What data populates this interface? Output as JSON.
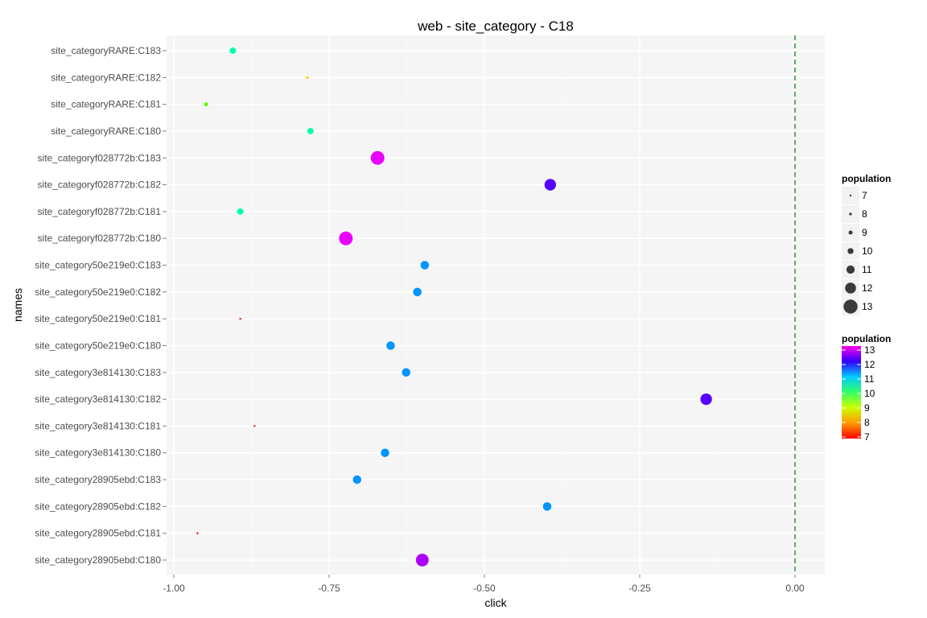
{
  "chart_data": {
    "type": "scatter",
    "title": "web - site_category - C18",
    "xlabel": "click",
    "ylabel": "names",
    "xlim": [
      -1.0,
      0.05
    ],
    "xticks": [
      -1.0,
      -0.75,
      -0.5,
      -0.25,
      0.0
    ],
    "xtick_labels": [
      "-1.00",
      "-0.75",
      "-0.50",
      "-0.25",
      "0.00"
    ],
    "reference_line": {
      "x": 0.0,
      "style": "dashed",
      "color": "#1a7a1a"
    },
    "grid": true,
    "background": "#f5f5f5",
    "categories": [
      "site_category28905ebd:C180",
      "site_category28905ebd:C181",
      "site_category28905ebd:C182",
      "site_category28905ebd:C183",
      "site_category3e814130:C180",
      "site_category3e814130:C181",
      "site_category3e814130:C182",
      "site_category3e814130:C183",
      "site_category50e219e0:C180",
      "site_category50e219e0:C181",
      "site_category50e219e0:C182",
      "site_category50e219e0:C183",
      "site_categoryf028772b:C180",
      "site_categoryf028772b:C181",
      "site_categoryf028772b:C182",
      "site_categoryf028772b:C183",
      "site_categoryRARE:C180",
      "site_categoryRARE:C181",
      "site_categoryRARE:C182",
      "site_categoryRARE:C183"
    ],
    "points": [
      {
        "name": "site_category28905ebd:C180",
        "click": -0.6,
        "population": 12.6
      },
      {
        "name": "site_category28905ebd:C181",
        "click": -0.962,
        "population": 7.0
      },
      {
        "name": "site_category28905ebd:C182",
        "click": -0.399,
        "population": 11.1
      },
      {
        "name": "site_category28905ebd:C183",
        "click": -0.705,
        "population": 11.1
      },
      {
        "name": "site_category3e814130:C180",
        "click": -0.66,
        "population": 11.1
      },
      {
        "name": "site_category3e814130:C181",
        "click": -0.87,
        "population": 7.0
      },
      {
        "name": "site_category3e814130:C182",
        "click": -0.143,
        "population": 12.2
      },
      {
        "name": "site_category3e814130:C183",
        "click": -0.626,
        "population": 11.1
      },
      {
        "name": "site_category50e219e0:C180",
        "click": -0.651,
        "population": 11.1
      },
      {
        "name": "site_category50e219e0:C181",
        "click": -0.893,
        "population": 7.0
      },
      {
        "name": "site_category50e219e0:C182",
        "click": -0.608,
        "population": 11.1
      },
      {
        "name": "site_category50e219e0:C183",
        "click": -0.596,
        "population": 11.1
      },
      {
        "name": "site_categoryf028772b:C180",
        "click": -0.723,
        "population": 12.9
      },
      {
        "name": "site_categoryf028772b:C181",
        "click": -0.893,
        "population": 10.2
      },
      {
        "name": "site_categoryf028772b:C182",
        "click": -0.394,
        "population": 12.2
      },
      {
        "name": "site_categoryf028772b:C183",
        "click": -0.672,
        "population": 12.9
      },
      {
        "name": "site_categoryRARE:C180",
        "click": -0.78,
        "population": 10.2
      },
      {
        "name": "site_categoryRARE:C181",
        "click": -0.948,
        "population": 9.0
      },
      {
        "name": "site_categoryRARE:C182",
        "click": -0.785,
        "population": 8.0
      },
      {
        "name": "site_categoryRARE:C183",
        "click": -0.905,
        "population": 10.2
      }
    ],
    "legends": {
      "size": {
        "title": "population",
        "breaks": [
          7,
          8,
          9,
          10,
          11,
          12,
          13
        ],
        "labels": [
          "7",
          "8",
          "9",
          "10",
          "11",
          "12",
          "13"
        ]
      },
      "color": {
        "title": "population",
        "breaks": [
          13,
          12,
          11,
          10,
          9,
          8,
          7
        ],
        "labels": [
          "13",
          "12",
          "11",
          "10",
          "9",
          "8",
          "7"
        ],
        "scale": "rainbow",
        "range": [
          7,
          13
        ]
      },
      "placement": "right"
    }
  }
}
